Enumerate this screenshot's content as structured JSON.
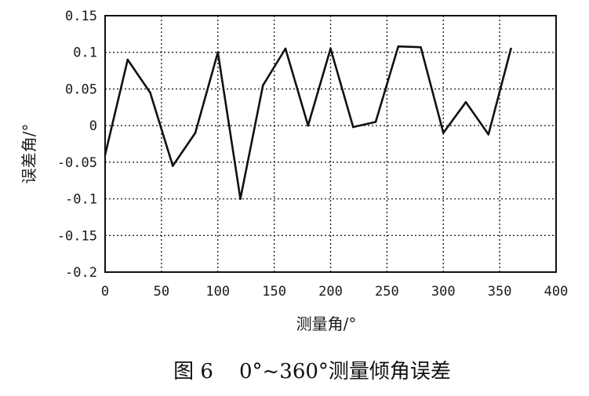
{
  "chart_data": {
    "type": "line",
    "title": "",
    "xlabel": "测量角/°",
    "ylabel": "误差角/°",
    "xlim": [
      0,
      400
    ],
    "ylim": [
      -0.2,
      0.15
    ],
    "x_ticks": [
      "0",
      "50",
      "100",
      "150",
      "200",
      "250",
      "300",
      "350",
      "400"
    ],
    "y_ticks": [
      "0.15",
      "0.1",
      "0.05",
      "0",
      "-0.05",
      "-0.1",
      "-0.15",
      "-0.2"
    ],
    "grid": true,
    "series": [
      {
        "x": [
          0,
          20,
          40,
          60,
          80,
          100,
          120,
          140,
          160,
          180,
          200,
          220,
          240,
          260,
          280,
          300,
          320,
          340,
          360
        ],
        "y": [
          -0.04,
          0.09,
          0.045,
          -0.055,
          -0.01,
          0.1,
          -0.1,
          0.055,
          0.105,
          0.0,
          0.105,
          -0.002,
          0.005,
          0.108,
          0.107,
          -0.01,
          0.032,
          -0.012,
          0.105
        ]
      }
    ]
  },
  "caption": "图 6    0°~360°测量倾角误差"
}
